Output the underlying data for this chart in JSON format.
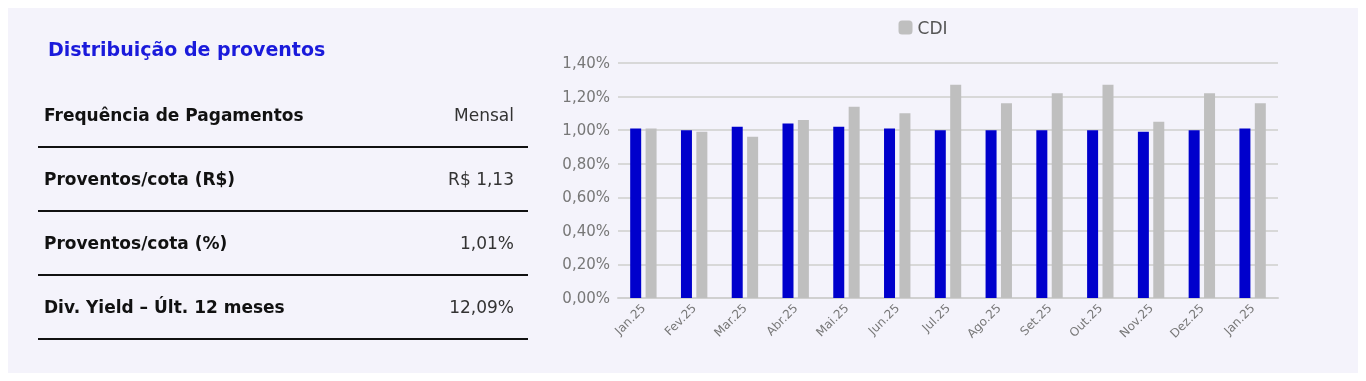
{
  "chart_data": [
    {
      "type": "other",
      "title": "Distribuição de proventos",
      "annotations": [
        "Frequência de Pagamentos",
        "Mensal",
        "Proventos/cota (R$)",
        "R$ 1,13",
        "Proventos/cota (%)",
        "1,01%",
        "Div. Yield – Últ. 12 meses",
        "12,09%"
      ]
    },
    {
      "type": "bar",
      "categories": [
        "Jan.25",
        "Fev.25",
        "Mar.25",
        "Abr.25",
        "Mai.25",
        "Jun.25",
        "Jul.25",
        "Ago.25",
        "Set.25",
        "Out.25",
        "Nov.25",
        "Dez.25",
        "Jan.25"
      ],
      "series": [
        {
          "color": "#0000cc",
          "values": [
            1.01,
            1.0,
            1.02,
            1.04,
            1.02,
            1.01,
            1.0,
            1.0,
            1.0,
            1.0,
            0.99,
            1.0,
            1.01
          ]
        },
        {
          "name": "CDI",
          "color": "#bfbfbf",
          "values": [
            1.01,
            0.99,
            0.96,
            1.06,
            1.14,
            1.1,
            1.27,
            1.16,
            1.22,
            1.27,
            1.05,
            1.22,
            1.16
          ]
        }
      ],
      "ylim": [
        0,
        1.4
      ],
      "yticks": [
        {
          "value": 0,
          "label": "0,00%"
        },
        {
          "value": 0.2,
          "label": "0,20%"
        },
        {
          "value": 0.4,
          "label": "0,40%"
        },
        {
          "value": 0.6,
          "label": "0,60%"
        },
        {
          "value": 0.8,
          "label": "0,80%"
        },
        {
          "value": 1.0,
          "label": "1,00%"
        },
        {
          "value": 1.2,
          "label": "1,20%"
        },
        {
          "value": 1.4,
          "label": "1,40%"
        }
      ],
      "grid": "y",
      "legend": "top"
    }
  ]
}
